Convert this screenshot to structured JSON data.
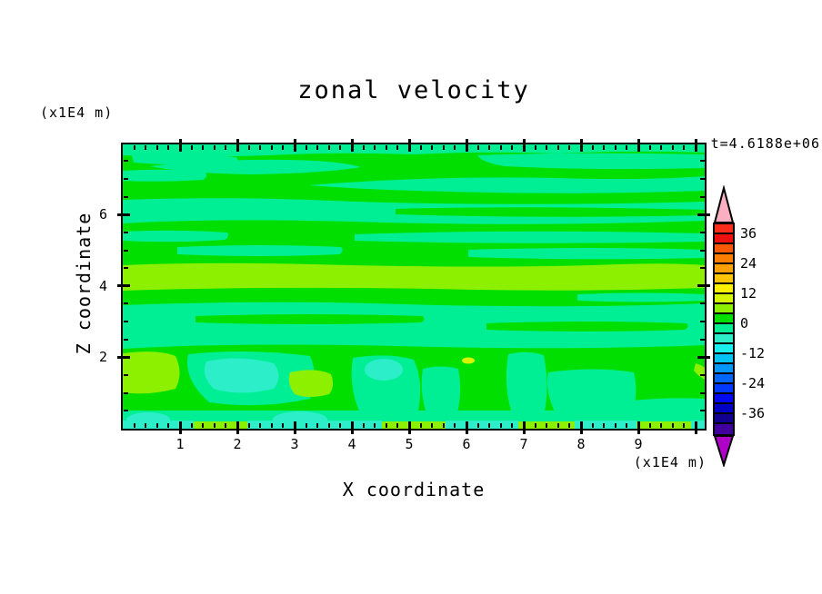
{
  "chart_data": {
    "type": "heatmap",
    "subtype": "filled-contour",
    "title": "zonal velocity",
    "time_label": "t=4.6188e+06",
    "x_axis": {
      "label": "X coordinate",
      "unit": "(x1E4 m)",
      "ticks": [
        1,
        2,
        3,
        4,
        5,
        6,
        7,
        8,
        9
      ],
      "range": [
        0,
        10.2
      ],
      "minor_tick_step": 0.2
    },
    "y_axis": {
      "label": "Z coordinate",
      "unit": "(x1E4 m)",
      "ticks": [
        6,
        4,
        2
      ],
      "range": [
        0,
        8
      ],
      "minor_tick_step": 0.5
    },
    "colorbar": {
      "tick_labels": [
        "36",
        "24",
        "12",
        "0",
        "-12",
        "-24",
        "-36"
      ],
      "contour_interval": 4,
      "over_color": "#FBAFC0",
      "under_color": "#B001C8",
      "cells": [
        {
          "min": 36,
          "max": 40,
          "color": "#FA2D1C"
        },
        {
          "min": 32,
          "max": 36,
          "color": "#EE0F0F"
        },
        {
          "min": 28,
          "max": 32,
          "color": "#F95900"
        },
        {
          "min": 24,
          "max": 28,
          "color": "#FB7E00"
        },
        {
          "min": 20,
          "max": 24,
          "color": "#FCA000"
        },
        {
          "min": 16,
          "max": 20,
          "color": "#FDC500"
        },
        {
          "min": 12,
          "max": 16,
          "color": "#FFF200"
        },
        {
          "min": 8,
          "max": 12,
          "color": "#D8F500"
        },
        {
          "min": 4,
          "max": 8,
          "color": "#8CF000"
        },
        {
          "min": 0,
          "max": 4,
          "color": "#00DF00"
        },
        {
          "min": -4,
          "max": 0,
          "color": "#00EF95"
        },
        {
          "min": -8,
          "max": -4,
          "color": "#2CEFC9"
        },
        {
          "min": -12,
          "max": -8,
          "color": "#1AEFEF"
        },
        {
          "min": -16,
          "max": -12,
          "color": "#00C3F5"
        },
        {
          "min": -20,
          "max": -16,
          "color": "#0096FB"
        },
        {
          "min": -24,
          "max": -20,
          "color": "#0064FF"
        },
        {
          "min": -28,
          "max": -24,
          "color": "#0038FE"
        },
        {
          "min": -32,
          "max": -28,
          "color": "#000AF0"
        },
        {
          "min": -36,
          "max": -32,
          "color": "#0000C4"
        },
        {
          "min": -40,
          "max": -36,
          "color": "#11008F"
        },
        {
          "min": -44,
          "max": -40,
          "color": "#41009B"
        }
      ]
    },
    "palette": {
      "green": "#00DF00",
      "spring_green": "#00EF95",
      "turquoise": "#2CEFC9",
      "chartreuse": "#8CF000",
      "yellow_green": "#D8F500"
    },
    "field_features": [
      {
        "value_range": "0 to 4",
        "color": "#00DF00",
        "where": "dominant background over whole domain"
      },
      {
        "value_range": "-4 to 0",
        "color": "#00EF95",
        "where": "streaky horizontal bands at z=5.5-8, z=6.8-7.9, z=2.2-3.5, and thin layer along z<0.45"
      },
      {
        "value_range": "4 to 8",
        "color": "#8CF000",
        "where": "band across all x at z=3.85-4.6; blobs at x=0-1.3 z=0.9-2.1, x=2.9-3.6 z=0.9-1.6; patches on bottom edge"
      },
      {
        "value_range": "-8 to -4",
        "color": "#2CEFC9",
        "where": "pools at x=1.3-2.6 z=1.0-1.9, x=4.4-4.9 z=1.3-1.9; patches on bottom edge"
      },
      {
        "value_range": "8 to 12",
        "color": "#D8F500",
        "where": "small speck at x=6.0 z=1.9"
      }
    ]
  }
}
